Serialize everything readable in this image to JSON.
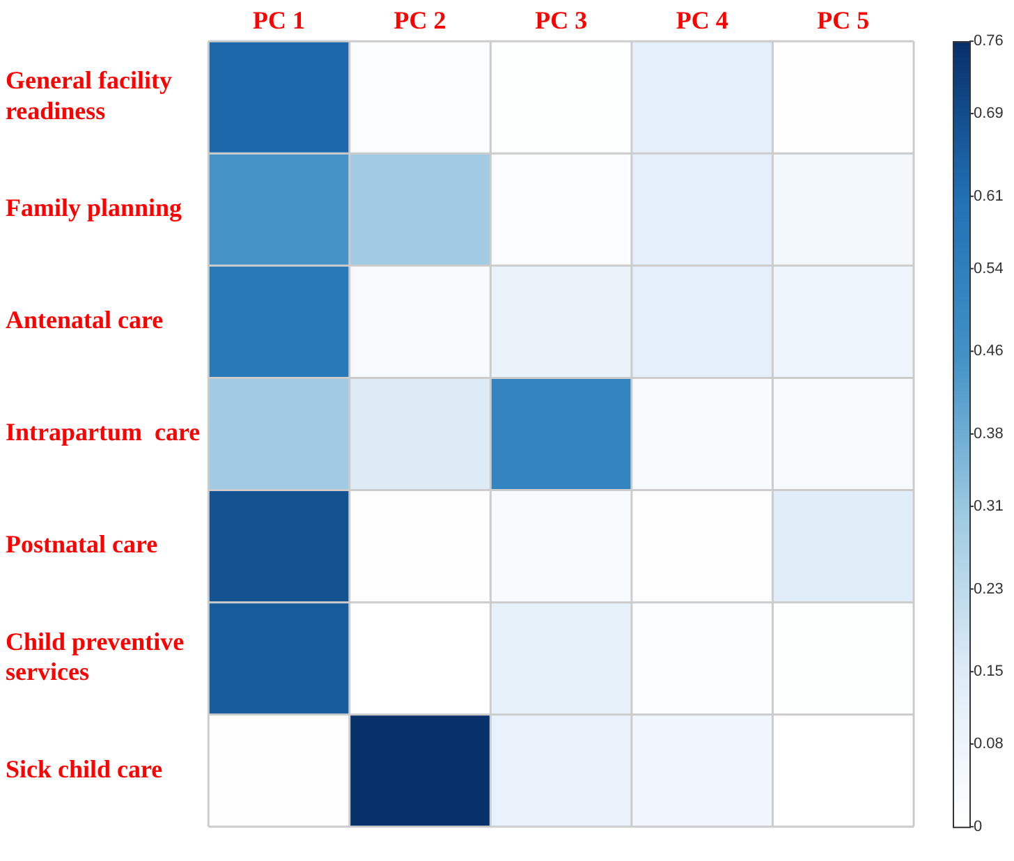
{
  "chart_data": {
    "type": "heatmap",
    "categories": [
      "PC 1",
      "PC 2",
      "PC 3",
      "PC 4",
      "PC 5"
    ],
    "y_categories": [
      "General facility readiness",
      "Family planning",
      "Antenatal care",
      "Intrapartum  care",
      "Postnatal care",
      "Child preventive services",
      "Sick child care"
    ],
    "cells": [
      [
        0.63,
        0.02,
        0.01,
        0.12,
        0.005
      ],
      [
        0.45,
        0.3,
        0.02,
        0.12,
        0.06
      ],
      [
        0.57,
        0.04,
        0.09,
        0.12,
        0.08
      ],
      [
        0.3,
        0.15,
        0.52,
        0.03,
        0.04
      ],
      [
        0.68,
        0.005,
        0.03,
        0.005,
        0.14
      ],
      [
        0.66,
        0,
        0.11,
        0.02,
        0.01
      ],
      [
        0.005,
        0.76,
        0.1,
        0.07,
        0
      ]
    ],
    "clim": [
      0,
      0.76
    ],
    "cticks": [
      0,
      {
        "value": 0.08,
        "label": "0.08"
      },
      {
        "value": 0.15,
        "label": "0.15"
      },
      {
        "value": 0.23,
        "label": "0.23"
      },
      {
        "value": 0.31,
        "label": "0.31"
      },
      {
        "value": 0.38,
        "label": "0.38"
      },
      {
        "value": 0.46,
        "label": "0.46"
      },
      {
        "value": 0.54,
        "label": "0.54"
      },
      {
        "value": 0.61,
        "label": "0.61"
      },
      {
        "value": 0.69,
        "label": "0.69"
      },
      0.76
    ],
    "grid": true
  }
}
